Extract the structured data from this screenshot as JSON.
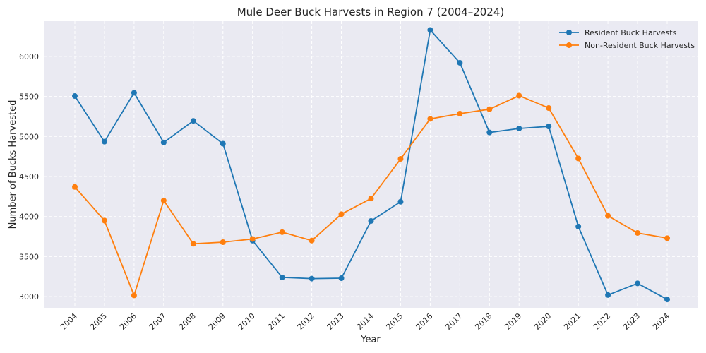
{
  "chart_data": {
    "type": "line",
    "title": "Mule Deer Buck Harvests in Region 7 (2004–2024)",
    "xlabel": "Year",
    "ylabel": "Number of Bucks Harvested",
    "categories": [
      "2004",
      "2005",
      "2006",
      "2007",
      "2008",
      "2009",
      "2010",
      "2011",
      "2012",
      "2013",
      "2014",
      "2015",
      "2016",
      "2017",
      "2018",
      "2019",
      "2020",
      "2021",
      "2022",
      "2023",
      "2024"
    ],
    "yticks": [
      3000,
      3500,
      4000,
      4500,
      5000,
      5500,
      6000
    ],
    "ylim": [
      2860,
      6440
    ],
    "grid": true,
    "legend_position": "top-right",
    "series": [
      {
        "name": "Resident Buck Harvests",
        "color": "#1f77b4",
        "values": [
          5505,
          4935,
          5545,
          4925,
          5195,
          4910,
          3700,
          3240,
          3225,
          3230,
          3945,
          4185,
          6330,
          5920,
          5050,
          5100,
          5125,
          3875,
          3020,
          3165,
          2965
        ]
      },
      {
        "name": "Non-Resident Buck Harvests",
        "color": "#ff7f0e",
        "values": [
          4370,
          3950,
          3015,
          4200,
          3660,
          3680,
          3720,
          3805,
          3700,
          4030,
          4225,
          4720,
          5220,
          5285,
          5340,
          5510,
          5355,
          4725,
          4010,
          3795,
          3730
        ]
      }
    ]
  }
}
